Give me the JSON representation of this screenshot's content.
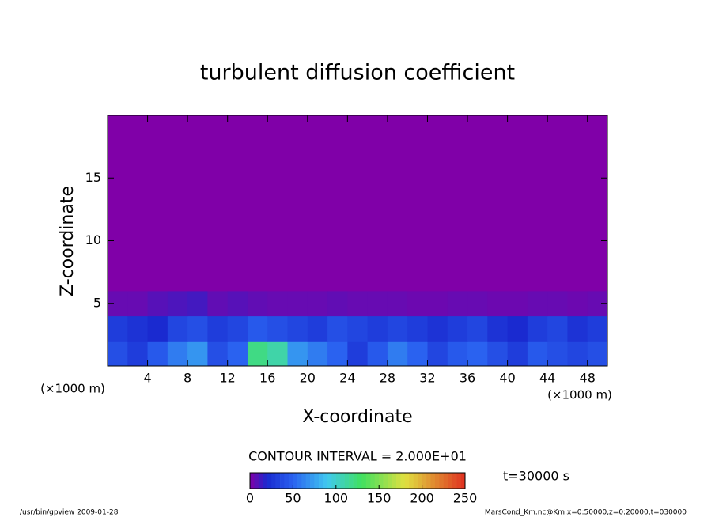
{
  "chart_data": {
    "type": "contour",
    "title": "turbulent diffusion coefficient",
    "xlabel": "X-coordinate",
    "ylabel": "Z-coordinate",
    "x_unit": "(×1000 m)",
    "y_unit": "(×1000 m)",
    "xlim": [
      0,
      50
    ],
    "ylim": [
      0,
      20
    ],
    "xticks": [
      4,
      8,
      12,
      16,
      20,
      24,
      28,
      32,
      36,
      40,
      44,
      48
    ],
    "yticks": [
      5,
      10,
      15
    ],
    "values": [
      [
        40,
        30,
        45,
        60,
        70,
        40,
        50,
        120,
        110,
        70,
        60,
        50,
        30,
        45,
        60,
        50,
        35,
        45,
        50,
        40,
        30,
        45,
        40,
        35,
        40
      ],
      [
        30,
        25,
        20,
        35,
        40,
        30,
        35,
        45,
        40,
        35,
        30,
        40,
        35,
        30,
        35,
        30,
        25,
        30,
        35,
        25,
        20,
        30,
        35,
        25,
        30
      ],
      [
        5,
        5,
        8,
        10,
        12,
        6,
        8,
        6,
        5,
        5,
        5,
        6,
        5,
        5,
        5,
        4,
        4,
        5,
        5,
        4,
        4,
        5,
        5,
        4,
        5
      ],
      [
        0,
        0,
        0,
        0,
        0,
        0,
        0,
        0,
        0,
        0,
        0,
        0,
        0,
        0,
        0,
        0,
        0,
        0,
        0,
        0,
        0,
        0,
        0,
        0,
        0
      ],
      [
        0,
        0,
        0,
        0,
        0,
        0,
        0,
        0,
        0,
        0,
        0,
        0,
        0,
        0,
        0,
        0,
        0,
        0,
        0,
        0,
        0,
        0,
        0,
        0,
        0
      ],
      [
        0,
        0,
        0,
        0,
        0,
        0,
        0,
        0,
        0,
        0,
        0,
        0,
        0,
        0,
        0,
        0,
        0,
        0,
        0,
        0,
        0,
        0,
        0,
        0,
        0
      ],
      [
        0,
        0,
        0,
        0,
        0,
        0,
        0,
        0,
        0,
        0,
        0,
        0,
        0,
        0,
        0,
        0,
        0,
        0,
        0,
        0,
        0,
        0,
        0,
        0,
        0
      ],
      [
        0,
        0,
        0,
        0,
        0,
        0,
        0,
        0,
        0,
        0,
        0,
        0,
        0,
        0,
        0,
        0,
        0,
        0,
        0,
        0,
        0,
        0,
        0,
        0,
        0
      ],
      [
        0,
        0,
        0,
        0,
        0,
        0,
        0,
        0,
        0,
        0,
        0,
        0,
        0,
        0,
        0,
        0,
        0,
        0,
        0,
        0,
        0,
        0,
        0,
        0,
        0
      ],
      [
        0,
        0,
        0,
        0,
        0,
        0,
        0,
        0,
        0,
        0,
        0,
        0,
        0,
        0,
        0,
        0,
        0,
        0,
        0,
        0,
        0,
        0,
        0,
        0,
        0
      ]
    ],
    "contour_interval": "CONTOUR INTERVAL = 2.000E+01",
    "time_label": "t=30000 s",
    "colorbar": {
      "lim": [
        0,
        250
      ],
      "ticks": [
        0,
        50,
        100,
        150,
        200,
        250
      ],
      "stops": [
        [
          0,
          "#8000a8"
        ],
        [
          20,
          "#1a2ad0"
        ],
        [
          50,
          "#2a62f0"
        ],
        [
          90,
          "#40c8f0"
        ],
        [
          130,
          "#40e060"
        ],
        [
          180,
          "#e0e040"
        ],
        [
          250,
          "#e03020"
        ]
      ]
    },
    "footer_left": "/usr/bin/gpview  2009-01-28",
    "footer_right": "MarsCond_Km.nc@Km,x=0:50000,z=0:20000,t=030000"
  }
}
